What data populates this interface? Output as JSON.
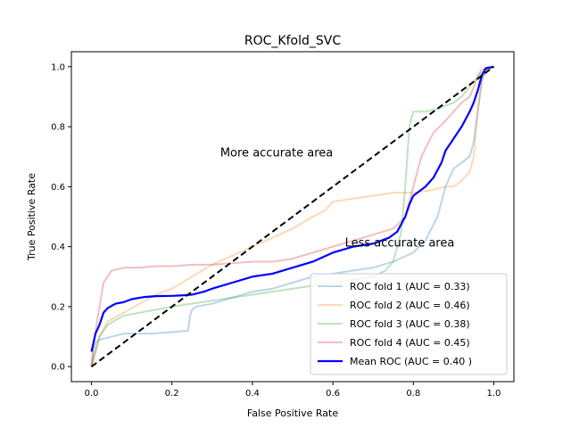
{
  "chart_data": {
    "type": "line",
    "title": "ROC_Kfold_SVC",
    "xlabel": "False Positive Rate",
    "ylabel": "True Positive Rate",
    "xlim": [
      -0.05,
      1.05
    ],
    "ylim": [
      -0.05,
      1.05
    ],
    "xticks": [
      0.0,
      0.2,
      0.4,
      0.6,
      0.8,
      1.0
    ],
    "yticks": [
      0.0,
      0.2,
      0.4,
      0.6,
      0.8,
      1.0
    ],
    "xtick_labels": [
      "0.0",
      "0.2",
      "0.4",
      "0.6",
      "0.8",
      "1.0"
    ],
    "ytick_labels": [
      "0.0",
      "0.2",
      "0.4",
      "0.6",
      "0.8",
      "1.0"
    ],
    "grid": false,
    "legend_position": "lower-right",
    "annotations": [
      {
        "text": "More accurate area",
        "x": 0.32,
        "y": 0.7
      },
      {
        "text": "Less accurate area",
        "x": 0.63,
        "y": 0.4
      }
    ],
    "series": [
      {
        "name": "ROC fold 1 (AUC = 0.33)",
        "color": "#1f77b4",
        "alpha": 0.3,
        "width": 2,
        "x": [
          0,
          0.005,
          0.01,
          0.02,
          0.05,
          0.08,
          0.12,
          0.15,
          0.2,
          0.24,
          0.245,
          0.25,
          0.26,
          0.3,
          0.35,
          0.4,
          0.45,
          0.5,
          0.55,
          0.6,
          0.65,
          0.7,
          0.75,
          0.8,
          0.83,
          0.86,
          0.87,
          0.88,
          0.9,
          0.92,
          0.94,
          0.95,
          0.96,
          0.97,
          0.98,
          1.0
        ],
        "y": [
          0,
          0.05,
          0.08,
          0.09,
          0.1,
          0.11,
          0.11,
          0.11,
          0.115,
          0.12,
          0.17,
          0.19,
          0.2,
          0.21,
          0.23,
          0.25,
          0.26,
          0.28,
          0.3,
          0.31,
          0.32,
          0.33,
          0.35,
          0.38,
          0.42,
          0.5,
          0.55,
          0.6,
          0.66,
          0.68,
          0.7,
          0.75,
          0.85,
          0.95,
          0.99,
          1.0
        ]
      },
      {
        "name": "ROC fold 2 (AUC = 0.46)",
        "color": "#ff7f0e",
        "alpha": 0.3,
        "width": 2,
        "x": [
          0,
          0.01,
          0.02,
          0.04,
          0.08,
          0.12,
          0.16,
          0.2,
          0.25,
          0.3,
          0.35,
          0.4,
          0.45,
          0.5,
          0.55,
          0.58,
          0.6,
          0.65,
          0.7,
          0.75,
          0.8,
          0.85,
          0.88,
          0.9,
          0.92,
          0.94,
          0.95,
          0.96,
          0.97,
          0.98,
          1.0
        ],
        "y": [
          0,
          0.05,
          0.1,
          0.15,
          0.18,
          0.21,
          0.24,
          0.26,
          0.3,
          0.34,
          0.37,
          0.4,
          0.43,
          0.46,
          0.5,
          0.52,
          0.55,
          0.56,
          0.57,
          0.58,
          0.58,
          0.59,
          0.6,
          0.6,
          0.62,
          0.65,
          0.7,
          0.85,
          0.95,
          0.99,
          1.0
        ]
      },
      {
        "name": "ROC fold 3 (AUC = 0.38)",
        "color": "#2ca02c",
        "alpha": 0.3,
        "width": 2,
        "x": [
          0,
          0.01,
          0.02,
          0.04,
          0.08,
          0.12,
          0.16,
          0.2,
          0.25,
          0.3,
          0.35,
          0.4,
          0.45,
          0.5,
          0.55,
          0.6,
          0.65,
          0.7,
          0.73,
          0.75,
          0.77,
          0.78,
          0.79,
          0.8,
          0.83,
          0.86,
          0.88,
          0.9,
          0.92,
          0.95,
          0.97,
          1.0
        ],
        "y": [
          0,
          0.05,
          0.1,
          0.14,
          0.17,
          0.18,
          0.19,
          0.2,
          0.21,
          0.22,
          0.23,
          0.24,
          0.25,
          0.26,
          0.27,
          0.28,
          0.29,
          0.3,
          0.32,
          0.35,
          0.45,
          0.6,
          0.8,
          0.85,
          0.85,
          0.86,
          0.87,
          0.88,
          0.9,
          0.95,
          0.98,
          1.0
        ]
      },
      {
        "name": "ROC fold 4 (AUC = 0.45)",
        "color": "#d62728",
        "alpha": 0.3,
        "width": 2,
        "x": [
          0,
          0.005,
          0.01,
          0.02,
          0.03,
          0.05,
          0.08,
          0.12,
          0.16,
          0.2,
          0.25,
          0.3,
          0.35,
          0.4,
          0.45,
          0.5,
          0.55,
          0.6,
          0.65,
          0.7,
          0.75,
          0.78,
          0.8,
          0.82,
          0.85,
          0.88,
          0.9,
          0.92,
          0.94,
          0.95,
          0.96,
          0.97,
          1.0
        ],
        "y": [
          0,
          0.08,
          0.12,
          0.2,
          0.28,
          0.32,
          0.33,
          0.33,
          0.335,
          0.335,
          0.34,
          0.34,
          0.345,
          0.35,
          0.35,
          0.36,
          0.38,
          0.4,
          0.42,
          0.44,
          0.46,
          0.5,
          0.6,
          0.7,
          0.78,
          0.82,
          0.85,
          0.88,
          0.9,
          0.93,
          0.97,
          0.99,
          1.0
        ]
      },
      {
        "name": "Mean ROC (AUC = 0.40 )",
        "color": "#0000ff",
        "alpha": 1,
        "width": 2.2,
        "x": [
          0,
          0.005,
          0.01,
          0.02,
          0.03,
          0.04,
          0.06,
          0.08,
          0.1,
          0.13,
          0.16,
          0.2,
          0.23,
          0.25,
          0.28,
          0.3,
          0.35,
          0.4,
          0.45,
          0.5,
          0.55,
          0.6,
          0.65,
          0.7,
          0.74,
          0.76,
          0.78,
          0.79,
          0.8,
          0.83,
          0.85,
          0.87,
          0.88,
          0.9,
          0.92,
          0.94,
          0.95,
          0.96,
          0.97,
          0.98,
          1.0
        ],
        "y": [
          0.05,
          0.08,
          0.11,
          0.14,
          0.18,
          0.195,
          0.21,
          0.215,
          0.225,
          0.232,
          0.235,
          0.236,
          0.238,
          0.24,
          0.25,
          0.26,
          0.28,
          0.3,
          0.31,
          0.33,
          0.35,
          0.38,
          0.4,
          0.41,
          0.43,
          0.45,
          0.5,
          0.54,
          0.57,
          0.6,
          0.63,
          0.68,
          0.72,
          0.76,
          0.8,
          0.85,
          0.88,
          0.92,
          0.97,
          0.995,
          1.0
        ]
      },
      {
        "name": "",
        "color": "#000000",
        "alpha": 1,
        "width": 2,
        "dash": true,
        "x": [
          0,
          1
        ],
        "y": [
          0,
          1
        ]
      }
    ]
  }
}
